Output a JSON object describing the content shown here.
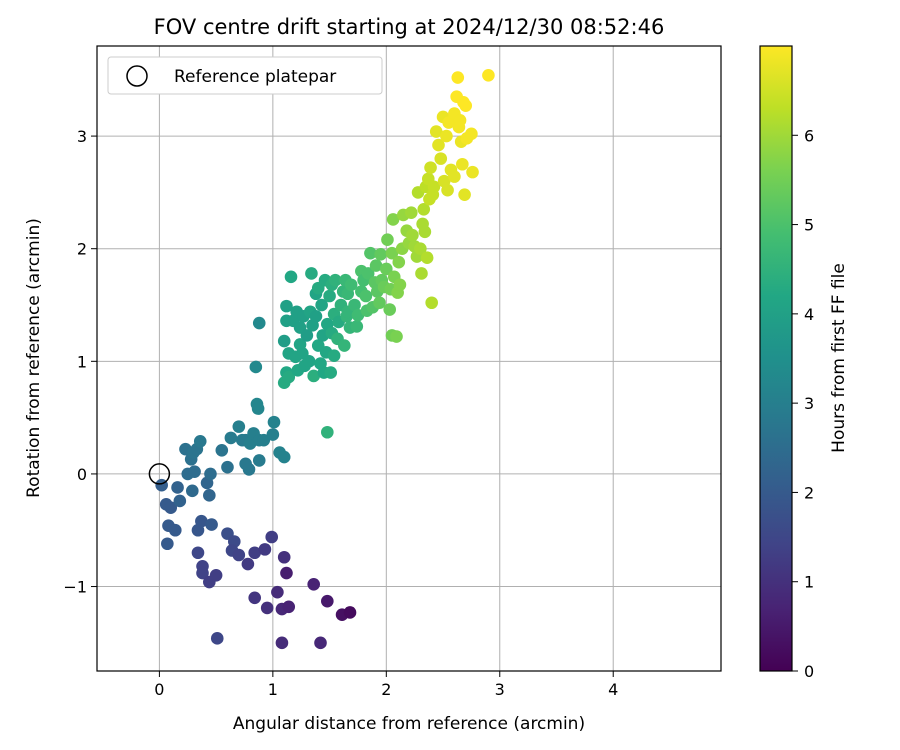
{
  "chart_data": {
    "type": "scatter",
    "title": "FOV centre drift starting at 2024/12/30 08:52:46",
    "xlabel": "Angular distance from reference (arcmin)",
    "ylabel": "Rotation from reference (arcmin)",
    "xlim": [
      -0.55,
      4.95
    ],
    "ylim": [
      -1.75,
      3.8
    ],
    "xticks": [
      0,
      1,
      2,
      3,
      4
    ],
    "yticks": [
      -1,
      0,
      1,
      2,
      3
    ],
    "grid": true,
    "legend": {
      "placement": "top-left",
      "entries": [
        "Reference platepar"
      ]
    },
    "reference_point": {
      "x": 0,
      "y": 0
    },
    "colorbar": {
      "label": "Hours from first FF file",
      "colormap": "viridis",
      "range": [
        0,
        7
      ],
      "ticks": [
        0,
        1,
        2,
        3,
        4,
        5,
        6
      ]
    },
    "points": [
      {
        "x": 0.02,
        "y": -0.1,
        "c": 2.1
      },
      {
        "x": 0.06,
        "y": -0.27,
        "c": 2.0
      },
      {
        "x": 0.08,
        "y": -0.46,
        "c": 2.0
      },
      {
        "x": 0.07,
        "y": -0.62,
        "c": 2.0
      },
      {
        "x": 0.1,
        "y": -0.3,
        "c": 2.0
      },
      {
        "x": 0.14,
        "y": -0.5,
        "c": 2.0
      },
      {
        "x": 0.16,
        "y": -0.12,
        "c": 2.2
      },
      {
        "x": 0.18,
        "y": -0.24,
        "c": 2.2
      },
      {
        "x": 0.23,
        "y": 0.22,
        "c": 2.6
      },
      {
        "x": 0.25,
        "y": 0.0,
        "c": 2.5
      },
      {
        "x": 0.28,
        "y": 0.13,
        "c": 2.6
      },
      {
        "x": 0.29,
        "y": -0.15,
        "c": 2.4
      },
      {
        "x": 0.3,
        "y": 0.19,
        "c": 2.7
      },
      {
        "x": 0.31,
        "y": 0.02,
        "c": 2.5
      },
      {
        "x": 0.33,
        "y": 0.22,
        "c": 2.7
      },
      {
        "x": 0.36,
        "y": 0.29,
        "c": 2.8
      },
      {
        "x": 0.34,
        "y": -0.5,
        "c": 1.9
      },
      {
        "x": 0.37,
        "y": -0.42,
        "c": 1.9
      },
      {
        "x": 0.34,
        "y": -0.7,
        "c": 1.5
      },
      {
        "x": 0.38,
        "y": -0.82,
        "c": 1.4
      },
      {
        "x": 0.38,
        "y": -0.88,
        "c": 1.4
      },
      {
        "x": 0.42,
        "y": -0.08,
        "c": 2.3
      },
      {
        "x": 0.44,
        "y": -0.19,
        "c": 2.3
      },
      {
        "x": 0.45,
        "y": 0.0,
        "c": 2.5
      },
      {
        "x": 0.44,
        "y": -0.96,
        "c": 1.3
      },
      {
        "x": 0.46,
        "y": -0.45,
        "c": 2.0
      },
      {
        "x": 0.5,
        "y": -0.9,
        "c": 1.3
      },
      {
        "x": 0.51,
        "y": -1.46,
        "c": 1.5
      },
      {
        "x": 0.55,
        "y": 0.21,
        "c": 2.7
      },
      {
        "x": 0.6,
        "y": 0.06,
        "c": 2.6
      },
      {
        "x": 0.6,
        "y": -0.53,
        "c": 1.7
      },
      {
        "x": 0.63,
        "y": 0.32,
        "c": 2.9
      },
      {
        "x": 0.66,
        "y": -0.6,
        "c": 1.6
      },
      {
        "x": 0.64,
        "y": -0.68,
        "c": 1.5
      },
      {
        "x": 0.7,
        "y": 0.42,
        "c": 3.0
      },
      {
        "x": 0.7,
        "y": -0.72,
        "c": 1.4
      },
      {
        "x": 0.73,
        "y": 0.3,
        "c": 2.9
      },
      {
        "x": 0.76,
        "y": 0.09,
        "c": 2.8
      },
      {
        "x": 0.76,
        "y": 0.3,
        "c": 2.9
      },
      {
        "x": 0.78,
        "y": -0.8,
        "c": 1.2
      },
      {
        "x": 0.79,
        "y": 0.04,
        "c": 2.8
      },
      {
        "x": 0.8,
        "y": 0.27,
        "c": 3.0
      },
      {
        "x": 0.83,
        "y": 0.36,
        "c": 3.0
      },
      {
        "x": 0.84,
        "y": -0.7,
        "c": 1.3
      },
      {
        "x": 0.84,
        "y": -1.1,
        "c": 1.1
      },
      {
        "x": 0.86,
        "y": 0.62,
        "c": 3.2
      },
      {
        "x": 0.87,
        "y": 0.58,
        "c": 3.2
      },
      {
        "x": 0.88,
        "y": 0.12,
        "c": 2.9
      },
      {
        "x": 0.88,
        "y": 0.3,
        "c": 3.0
      },
      {
        "x": 0.85,
        "y": 0.95,
        "c": 3.3
      },
      {
        "x": 0.88,
        "y": 1.34,
        "c": 3.3
      },
      {
        "x": 0.92,
        "y": 0.3,
        "c": 3.0
      },
      {
        "x": 0.93,
        "y": -0.67,
        "c": 1.2
      },
      {
        "x": 0.95,
        "y": -1.19,
        "c": 1.0
      },
      {
        "x": 0.99,
        "y": -0.56,
        "c": 1.3
      },
      {
        "x": 1.0,
        "y": 0.35,
        "c": 3.0
      },
      {
        "x": 1.01,
        "y": 0.46,
        "c": 3.1
      },
      {
        "x": 1.04,
        "y": -1.05,
        "c": 0.9
      },
      {
        "x": 1.06,
        "y": 0.19,
        "c": 3.1
      },
      {
        "x": 1.08,
        "y": -1.2,
        "c": 0.8
      },
      {
        "x": 1.08,
        "y": -1.5,
        "c": 0.9
      },
      {
        "x": 1.1,
        "y": 0.15,
        "c": 3.1
      },
      {
        "x": 1.1,
        "y": -0.74,
        "c": 1.0
      },
      {
        "x": 1.12,
        "y": -0.88,
        "c": 0.6
      },
      {
        "x": 1.14,
        "y": -1.18,
        "c": 0.7
      },
      {
        "x": 1.1,
        "y": 0.81,
        "c": 4.3
      },
      {
        "x": 1.12,
        "y": 0.9,
        "c": 4.2
      },
      {
        "x": 1.12,
        "y": 1.36,
        "c": 4.0
      },
      {
        "x": 1.12,
        "y": 1.49,
        "c": 4.0
      },
      {
        "x": 1.14,
        "y": 0.86,
        "c": 4.3
      },
      {
        "x": 1.14,
        "y": 1.07,
        "c": 4.1
      },
      {
        "x": 1.16,
        "y": 1.75,
        "c": 4.2
      },
      {
        "x": 1.18,
        "y": 1.36,
        "c": 4.0
      },
      {
        "x": 1.2,
        "y": 1.04,
        "c": 4.1
      },
      {
        "x": 1.21,
        "y": 1.44,
        "c": 4.0
      },
      {
        "x": 1.22,
        "y": 0.92,
        "c": 4.2
      },
      {
        "x": 1.24,
        "y": 1.3,
        "c": 4.0
      },
      {
        "x": 1.24,
        "y": 1.15,
        "c": 4.1
      },
      {
        "x": 1.26,
        "y": 1.07,
        "c": 4.1
      },
      {
        "x": 1.27,
        "y": 1.4,
        "c": 4.0
      },
      {
        "x": 1.28,
        "y": 0.96,
        "c": 4.1
      },
      {
        "x": 1.1,
        "y": 1.18,
        "c": 3.9
      },
      {
        "x": 1.3,
        "y": 1.23,
        "c": 3.9
      },
      {
        "x": 1.32,
        "y": 1.0,
        "c": 4.1
      },
      {
        "x": 1.33,
        "y": 1.44,
        "c": 4.1
      },
      {
        "x": 1.34,
        "y": 1.78,
        "c": 4.3
      },
      {
        "x": 1.35,
        "y": 1.32,
        "c": 4.0
      },
      {
        "x": 1.36,
        "y": 0.87,
        "c": 4.4
      },
      {
        "x": 1.36,
        "y": -0.98,
        "c": 0.7
      },
      {
        "x": 1.38,
        "y": 1.4,
        "c": 4.0
      },
      {
        "x": 1.38,
        "y": 1.6,
        "c": 4.1
      },
      {
        "x": 1.4,
        "y": 1.14,
        "c": 4.2
      },
      {
        "x": 1.4,
        "y": 1.65,
        "c": 4.3
      },
      {
        "x": 1.42,
        "y": 0.98,
        "c": 4.2
      },
      {
        "x": 1.42,
        "y": -1.5,
        "c": 0.8
      },
      {
        "x": 1.43,
        "y": 1.5,
        "c": 4.1
      },
      {
        "x": 1.44,
        "y": 1.23,
        "c": 4.1
      },
      {
        "x": 1.45,
        "y": 0.9,
        "c": 4.2
      },
      {
        "x": 1.46,
        "y": 1.72,
        "c": 4.3
      },
      {
        "x": 1.47,
        "y": 1.08,
        "c": 4.2
      },
      {
        "x": 1.48,
        "y": 1.33,
        "c": 4.2
      },
      {
        "x": 1.48,
        "y": 0.37,
        "c": 4.5
      },
      {
        "x": 1.48,
        "y": -1.13,
        "c": 0.5
      },
      {
        "x": 1.5,
        "y": 1.58,
        "c": 4.3
      },
      {
        "x": 1.51,
        "y": 0.9,
        "c": 4.3
      },
      {
        "x": 1.52,
        "y": 1.25,
        "c": 4.3
      },
      {
        "x": 1.52,
        "y": 1.68,
        "c": 4.4
      },
      {
        "x": 1.54,
        "y": 1.05,
        "c": 4.3
      },
      {
        "x": 1.54,
        "y": 1.42,
        "c": 4.4
      },
      {
        "x": 1.55,
        "y": 1.72,
        "c": 4.5
      },
      {
        "x": 1.57,
        "y": 1.2,
        "c": 4.5
      },
      {
        "x": 1.58,
        "y": 1.35,
        "c": 4.3
      },
      {
        "x": 1.6,
        "y": 1.5,
        "c": 4.5
      },
      {
        "x": 1.61,
        "y": -1.25,
        "c": 0.3
      },
      {
        "x": 1.62,
        "y": 1.62,
        "c": 4.6
      },
      {
        "x": 1.63,
        "y": 1.14,
        "c": 4.6
      },
      {
        "x": 1.64,
        "y": 1.72,
        "c": 4.7
      },
      {
        "x": 1.65,
        "y": 1.4,
        "c": 4.6
      },
      {
        "x": 1.66,
        "y": 1.6,
        "c": 4.7
      },
      {
        "x": 1.66,
        "y": 1.44,
        "c": 4.6
      },
      {
        "x": 1.68,
        "y": 1.3,
        "c": 4.6
      },
      {
        "x": 1.68,
        "y": -1.23,
        "c": 0.2
      },
      {
        "x": 1.69,
        "y": 1.68,
        "c": 4.8
      },
      {
        "x": 1.72,
        "y": 1.5,
        "c": 4.7
      },
      {
        "x": 1.74,
        "y": 1.31,
        "c": 4.7
      },
      {
        "x": 1.75,
        "y": 1.41,
        "c": 4.8
      },
      {
        "x": 1.78,
        "y": 1.62,
        "c": 4.9
      },
      {
        "x": 1.78,
        "y": 1.8,
        "c": 5.0
      },
      {
        "x": 1.8,
        "y": 1.72,
        "c": 4.9
      },
      {
        "x": 1.82,
        "y": 1.58,
        "c": 5.0
      },
      {
        "x": 1.83,
        "y": 1.45,
        "c": 5.0
      },
      {
        "x": 1.84,
        "y": 1.78,
        "c": 5.0
      },
      {
        "x": 1.86,
        "y": 1.96,
        "c": 5.1
      },
      {
        "x": 1.88,
        "y": 1.48,
        "c": 5.1
      },
      {
        "x": 1.9,
        "y": 1.7,
        "c": 5.2
      },
      {
        "x": 1.91,
        "y": 1.85,
        "c": 5.2
      },
      {
        "x": 1.92,
        "y": 1.62,
        "c": 5.2
      },
      {
        "x": 1.94,
        "y": 1.52,
        "c": 5.3
      },
      {
        "x": 1.95,
        "y": 1.95,
        "c": 5.3
      },
      {
        "x": 1.96,
        "y": 1.72,
        "c": 5.3
      },
      {
        "x": 1.98,
        "y": 1.66,
        "c": 5.4
      },
      {
        "x": 2.0,
        "y": 1.82,
        "c": 5.4
      },
      {
        "x": 2.01,
        "y": 2.08,
        "c": 5.5
      },
      {
        "x": 2.03,
        "y": 1.46,
        "c": 5.4
      },
      {
        "x": 2.04,
        "y": 1.64,
        "c": 5.5
      },
      {
        "x": 2.05,
        "y": 1.96,
        "c": 5.6
      },
      {
        "x": 2.05,
        "y": 1.23,
        "c": 5.5
      },
      {
        "x": 2.06,
        "y": 2.26,
        "c": 5.7
      },
      {
        "x": 2.07,
        "y": 1.75,
        "c": 5.6
      },
      {
        "x": 2.09,
        "y": 1.22,
        "c": 5.6
      },
      {
        "x": 2.1,
        "y": 1.61,
        "c": 5.7
      },
      {
        "x": 2.11,
        "y": 1.88,
        "c": 5.7
      },
      {
        "x": 2.12,
        "y": 1.68,
        "c": 5.7
      },
      {
        "x": 2.14,
        "y": 2.0,
        "c": 5.8
      },
      {
        "x": 2.15,
        "y": 2.3,
        "c": 5.9
      },
      {
        "x": 2.18,
        "y": 2.16,
        "c": 5.9
      },
      {
        "x": 2.2,
        "y": 2.05,
        "c": 5.9
      },
      {
        "x": 2.22,
        "y": 2.32,
        "c": 6.0
      },
      {
        "x": 2.23,
        "y": 2.12,
        "c": 6.0
      },
      {
        "x": 2.25,
        "y": 2.02,
        "c": 6.0
      },
      {
        "x": 2.27,
        "y": 1.93,
        "c": 6.0
      },
      {
        "x": 2.28,
        "y": 2.5,
        "c": 6.2
      },
      {
        "x": 2.3,
        "y": 2.0,
        "c": 6.1
      },
      {
        "x": 2.31,
        "y": 1.78,
        "c": 6.1
      },
      {
        "x": 2.32,
        "y": 2.22,
        "c": 6.1
      },
      {
        "x": 2.33,
        "y": 2.35,
        "c": 6.2
      },
      {
        "x": 2.34,
        "y": 2.15,
        "c": 6.1
      },
      {
        "x": 2.35,
        "y": 2.55,
        "c": 6.3
      },
      {
        "x": 2.36,
        "y": 1.92,
        "c": 6.2
      },
      {
        "x": 2.37,
        "y": 2.62,
        "c": 6.4
      },
      {
        "x": 2.38,
        "y": 2.44,
        "c": 6.4
      },
      {
        "x": 2.39,
        "y": 2.72,
        "c": 6.5
      },
      {
        "x": 2.4,
        "y": 1.52,
        "c": 6.2
      },
      {
        "x": 2.41,
        "y": 2.48,
        "c": 6.4
      },
      {
        "x": 2.42,
        "y": 2.55,
        "c": 6.4
      },
      {
        "x": 2.44,
        "y": 3.04,
        "c": 6.7
      },
      {
        "x": 2.46,
        "y": 2.92,
        "c": 6.7
      },
      {
        "x": 2.48,
        "y": 2.8,
        "c": 6.6
      },
      {
        "x": 2.5,
        "y": 3.17,
        "c": 6.8
      },
      {
        "x": 2.51,
        "y": 2.6,
        "c": 6.6
      },
      {
        "x": 2.53,
        "y": 3.0,
        "c": 6.8
      },
      {
        "x": 2.54,
        "y": 2.52,
        "c": 6.6
      },
      {
        "x": 2.55,
        "y": 3.12,
        "c": 6.9
      },
      {
        "x": 2.57,
        "y": 2.7,
        "c": 6.7
      },
      {
        "x": 2.6,
        "y": 3.2,
        "c": 6.9
      },
      {
        "x": 2.6,
        "y": 2.64,
        "c": 6.7
      },
      {
        "x": 2.62,
        "y": 3.35,
        "c": 7.0
      },
      {
        "x": 2.63,
        "y": 3.52,
        "c": 7.0
      },
      {
        "x": 2.64,
        "y": 3.08,
        "c": 6.9
      },
      {
        "x": 2.65,
        "y": 3.14,
        "c": 6.9
      },
      {
        "x": 2.66,
        "y": 2.95,
        "c": 6.8
      },
      {
        "x": 2.67,
        "y": 2.75,
        "c": 6.8
      },
      {
        "x": 2.68,
        "y": 3.3,
        "c": 7.0
      },
      {
        "x": 2.69,
        "y": 2.48,
        "c": 6.7
      },
      {
        "x": 2.7,
        "y": 3.27,
        "c": 7.0
      },
      {
        "x": 2.71,
        "y": 2.98,
        "c": 6.9
      },
      {
        "x": 2.75,
        "y": 3.02,
        "c": 6.9
      },
      {
        "x": 2.76,
        "y": 2.68,
        "c": 6.8
      },
      {
        "x": 2.9,
        "y": 3.54,
        "c": 7.0
      }
    ]
  }
}
